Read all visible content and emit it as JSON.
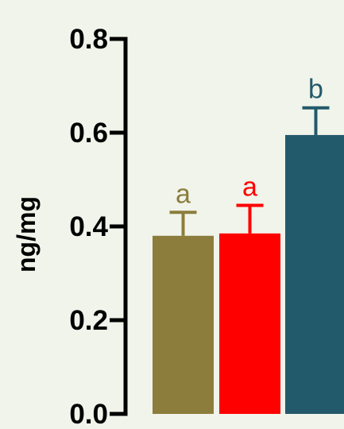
{
  "chart_data": {
    "type": "bar",
    "title": "",
    "xlabel": "",
    "ylabel": "ng/mg",
    "ylim": [
      0,
      0.8
    ],
    "yticks": [
      "0.0",
      "0.2",
      "0.4",
      "0.6",
      "0.8"
    ],
    "grid": false,
    "bars": [
      {
        "value": 0.38,
        "error": 0.05,
        "label": "a",
        "color": "#8c7d3c",
        "label_color": "#8c7d3c"
      },
      {
        "value": 0.385,
        "error": 0.06,
        "label": "a",
        "color": "#ff0000",
        "label_color": "#ff0000"
      },
      {
        "value": 0.595,
        "error": 0.058,
        "label": "b",
        "color": "#235a6b",
        "label_color": "#235a6b"
      }
    ]
  },
  "colors": {
    "background": "#f1f4ea",
    "axis": "#000000"
  }
}
